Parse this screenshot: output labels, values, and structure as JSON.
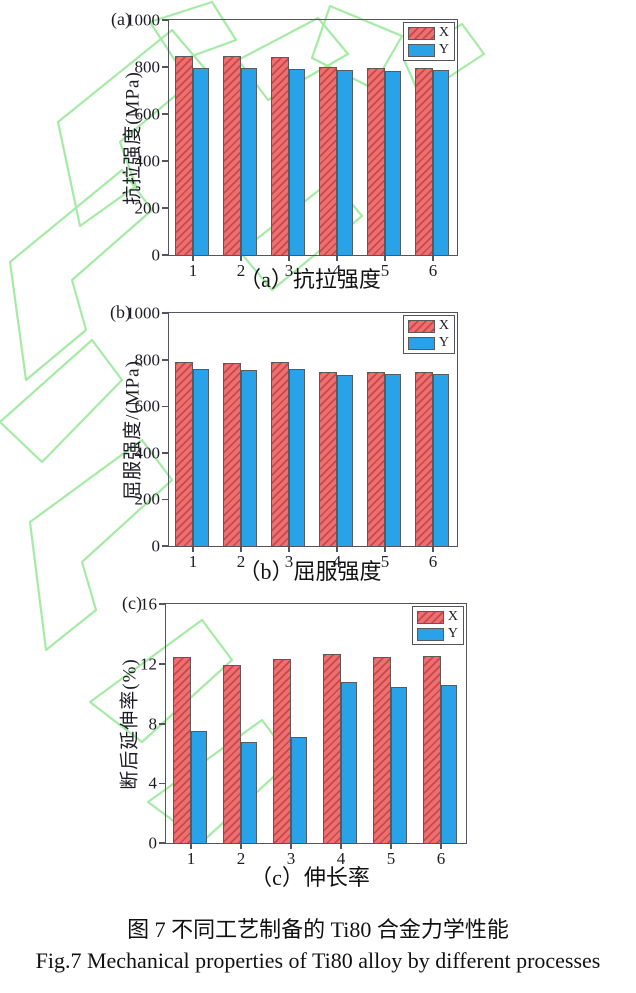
{
  "figure": {
    "caption_cn": "图 7  不同工艺制备的 Ti80 合金力学性能",
    "caption_en": "Fig.7 Mechanical properties of Ti80 alloy by different processes"
  },
  "colors": {
    "bar_x_fill": "#ee6f70",
    "bar_x_hatch": "#c8474b",
    "bar_y_fill": "#29a2e9",
    "axis": "#54545e",
    "watermark_green": "#a5eba5"
  },
  "chart_data": [
    {
      "type": "bar",
      "panel_label": "(a)",
      "caption": "（a）抗拉强度",
      "ylabel": "抗拉强度(MPa)",
      "xlabel": "",
      "categories": [
        "1",
        "2",
        "3",
        "4",
        "5",
        "6"
      ],
      "series": [
        {
          "name": "X",
          "values": [
            850,
            850,
            845,
            805,
            800,
            800
          ]
        },
        {
          "name": "Y",
          "values": [
            800,
            800,
            795,
            790,
            786,
            789
          ]
        }
      ],
      "ylim": [
        0,
        1000
      ],
      "yticks": [
        0,
        200,
        400,
        600,
        800,
        1000
      ],
      "grid": false,
      "legend_position": "top-right"
    },
    {
      "type": "bar",
      "panel_label": "(b)",
      "caption": "（b）屈服强度",
      "ylabel": "屈服强度/(MPa)",
      "xlabel": "",
      "categories": [
        "1",
        "2",
        "3",
        "4",
        "5",
        "6"
      ],
      "series": [
        {
          "name": "X",
          "values": [
            795,
            790,
            795,
            752,
            750,
            748
          ]
        },
        {
          "name": "Y",
          "values": [
            765,
            760,
            764,
            738,
            740,
            741
          ]
        }
      ],
      "ylim": [
        0,
        1000
      ],
      "yticks": [
        0,
        200,
        400,
        600,
        800,
        1000
      ],
      "grid": false,
      "legend_position": "top-right"
    },
    {
      "type": "bar",
      "panel_label": "(c)",
      "caption": "（c）伸长率",
      "ylabel": "断后延伸率(%)",
      "xlabel": "",
      "categories": [
        "1",
        "2",
        "3",
        "4",
        "5",
        "6"
      ],
      "series": [
        {
          "name": "X",
          "values": [
            12.5,
            12.0,
            12.4,
            12.7,
            12.5,
            12.6
          ]
        },
        {
          "name": "Y",
          "values": [
            7.5,
            6.8,
            7.1,
            10.8,
            10.5,
            10.6
          ]
        }
      ],
      "ylim": [
        0,
        16
      ],
      "yticks": [
        0,
        4,
        8,
        12,
        16
      ],
      "grid": false,
      "legend_position": "top-right"
    }
  ]
}
